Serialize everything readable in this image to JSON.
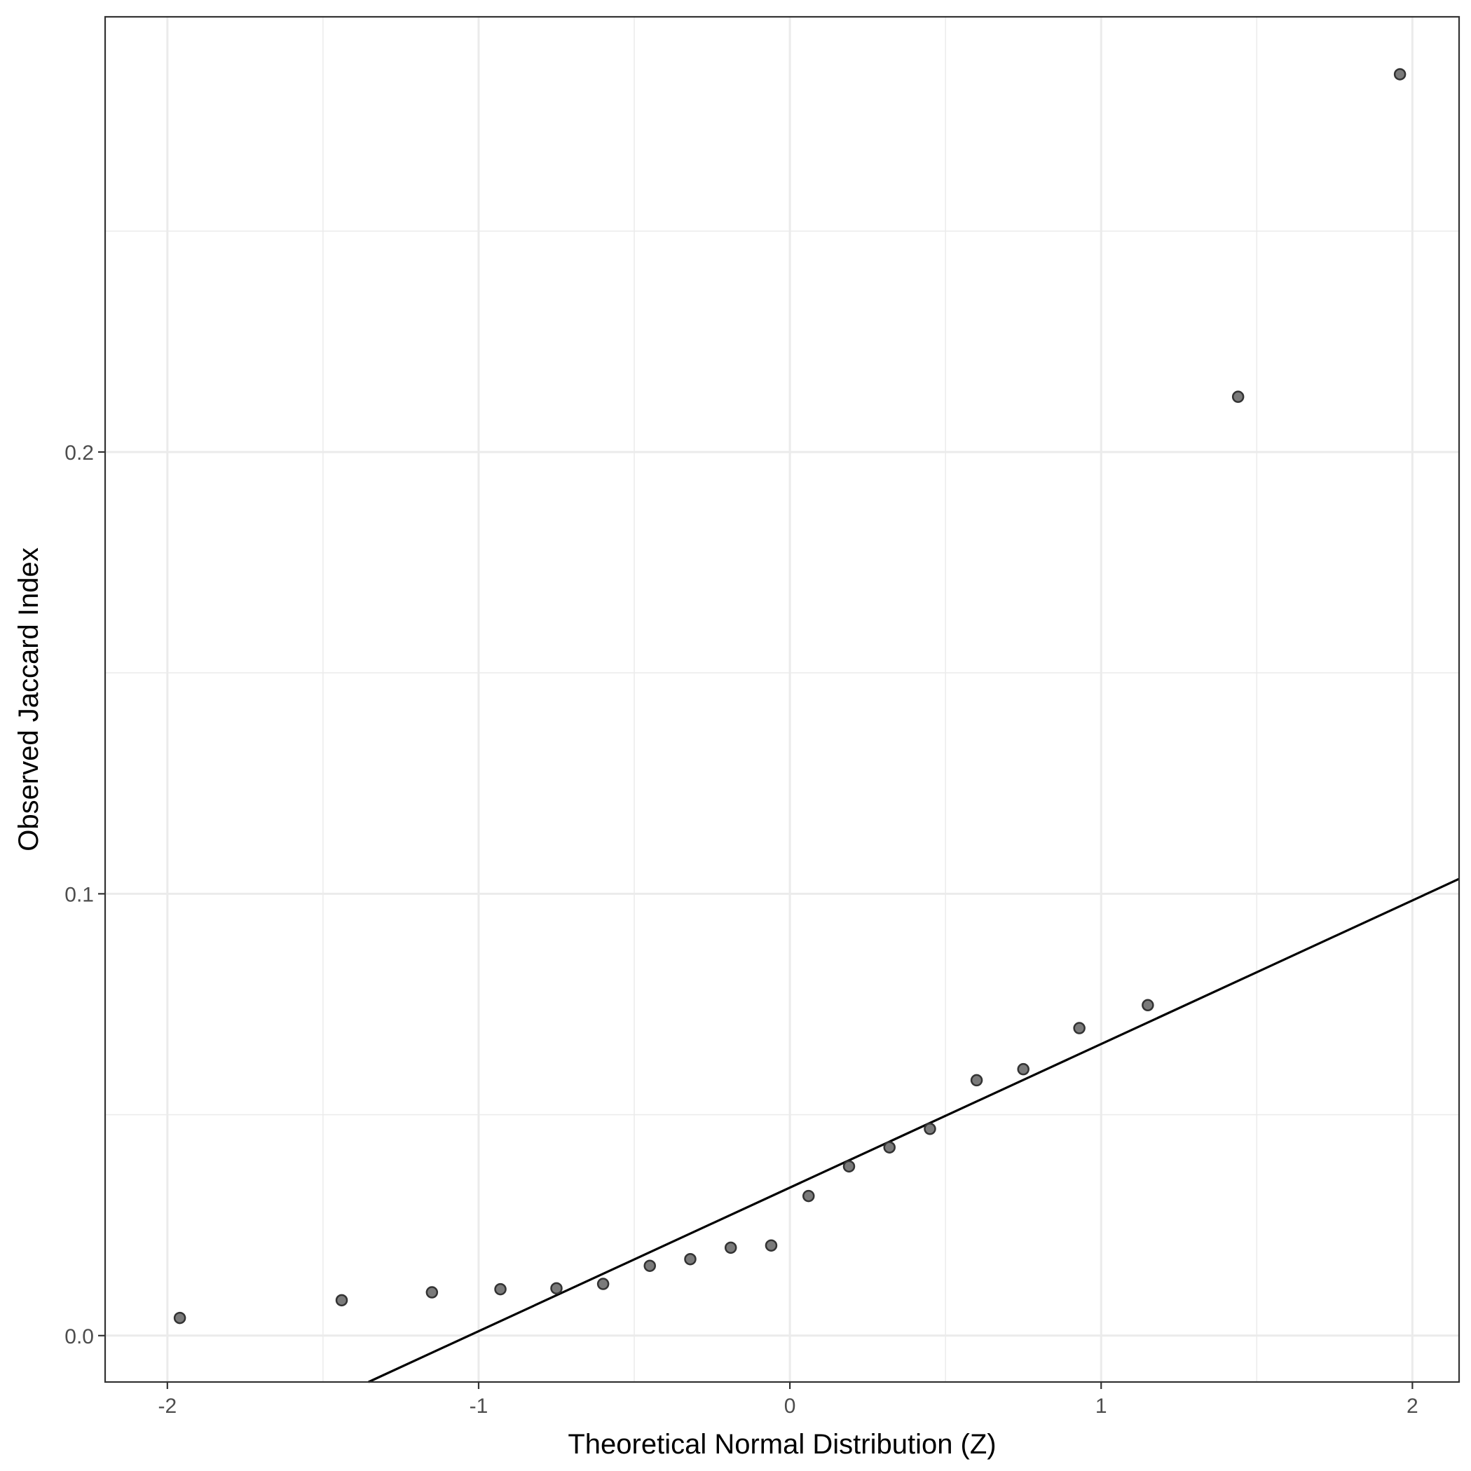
{
  "chart_data": {
    "type": "scatter",
    "xlabel": "Theoretical Normal Distribution (Z)",
    "ylabel": "Observed Jaccard Index",
    "xlim": [
      -2.2,
      2.15
    ],
    "ylim": [
      -0.0105,
      0.2985
    ],
    "x_ticks": [
      -2,
      -1,
      0,
      1,
      2
    ],
    "x_tick_labels": [
      "-2",
      "-1",
      "0",
      "1",
      "2"
    ],
    "y_ticks": [
      0.0,
      0.1,
      0.2
    ],
    "y_tick_labels": [
      "0.0",
      "0.1",
      "0.2"
    ],
    "grid": true,
    "points": {
      "x": [
        -1.96,
        -1.44,
        -1.15,
        -0.93,
        -0.75,
        -0.6,
        -0.45,
        -0.32,
        -0.19,
        -0.06,
        0.06,
        0.19,
        0.32,
        0.45,
        0.6,
        0.75,
        0.93,
        1.15,
        1.44,
        1.96
      ],
      "y": [
        0.004,
        0.008,
        0.0098,
        0.0105,
        0.0107,
        0.0117,
        0.0158,
        0.0173,
        0.0199,
        0.0204,
        0.0316,
        0.0383,
        0.0426,
        0.0468,
        0.0578,
        0.0603,
        0.0696,
        0.0748,
        0.2125,
        0.2855
      ]
    },
    "reference_line": {
      "intercept": 0.0335,
      "slope": 0.0325
    }
  }
}
